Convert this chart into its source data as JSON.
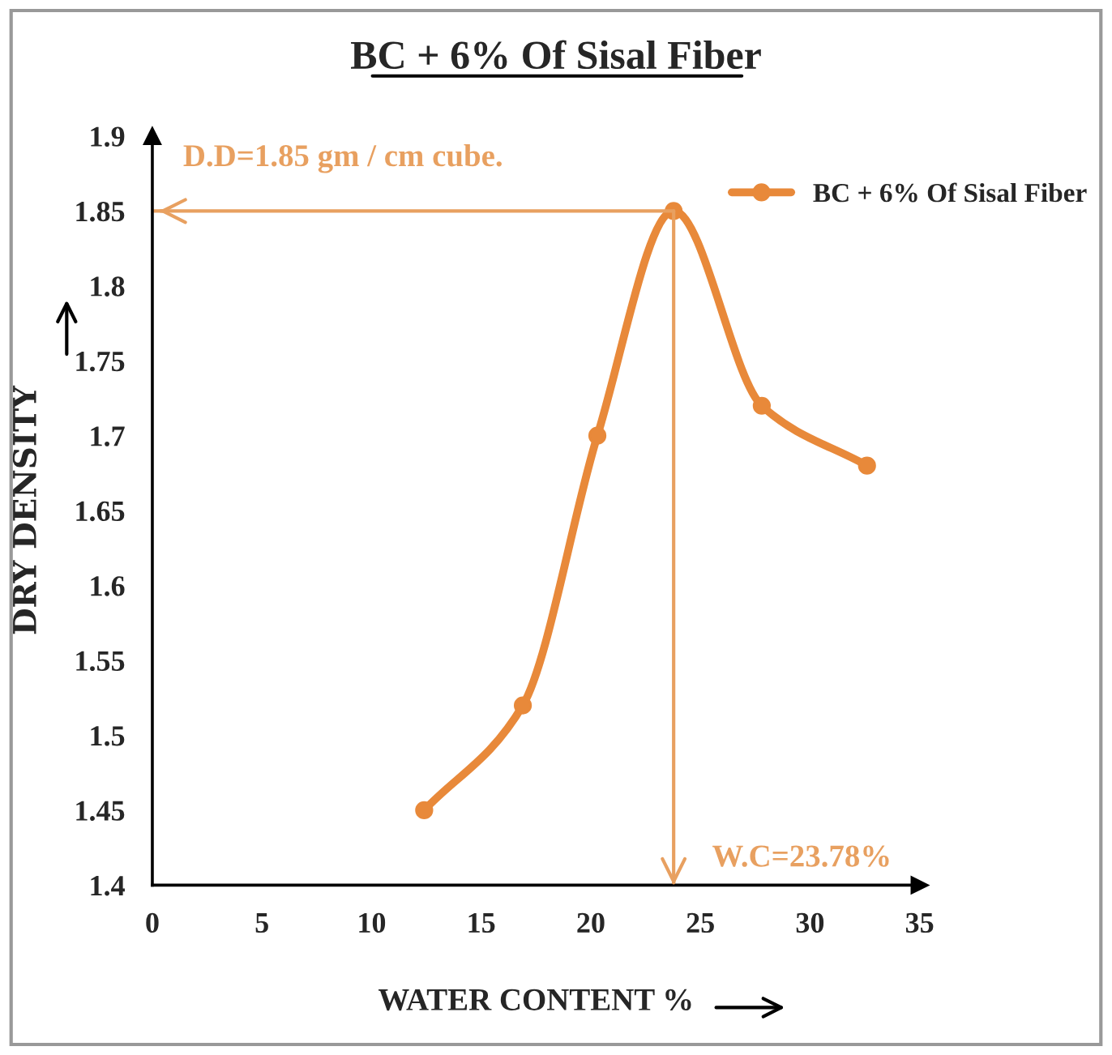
{
  "chart_data": {
    "type": "line",
    "title": "BC + 6% Of Sisal Fiber",
    "xlabel": "WATER CONTENT %",
    "ylabel": "DRY DENSITY",
    "x": [
      12.4,
      16.9,
      20.3,
      23.78,
      27.8,
      32.6
    ],
    "series": [
      {
        "name": "BC + 6% Of Sisal Fiber",
        "color": "#e8893a",
        "values": [
          1.45,
          1.52,
          1.7,
          1.85,
          1.72,
          1.68
        ]
      }
    ],
    "xlim": [
      0,
      35
    ],
    "xticks": [
      0,
      5,
      10,
      15,
      20,
      25,
      30,
      35
    ],
    "ylim": [
      1.4,
      1.9
    ],
    "yticks": [
      1.4,
      1.45,
      1.5,
      1.55,
      1.6,
      1.65,
      1.7,
      1.75,
      1.8,
      1.85,
      1.9
    ],
    "ref_lines": [
      {
        "axis": "y",
        "value": 1.85,
        "label": "D.D=1.85 gm / cm cube.",
        "color": "#e8a060"
      },
      {
        "axis": "x",
        "value": 23.78,
        "label": "W.C=23.78%",
        "color": "#e8a060"
      }
    ],
    "marker": "circle",
    "grid": false,
    "legend": "top right"
  }
}
